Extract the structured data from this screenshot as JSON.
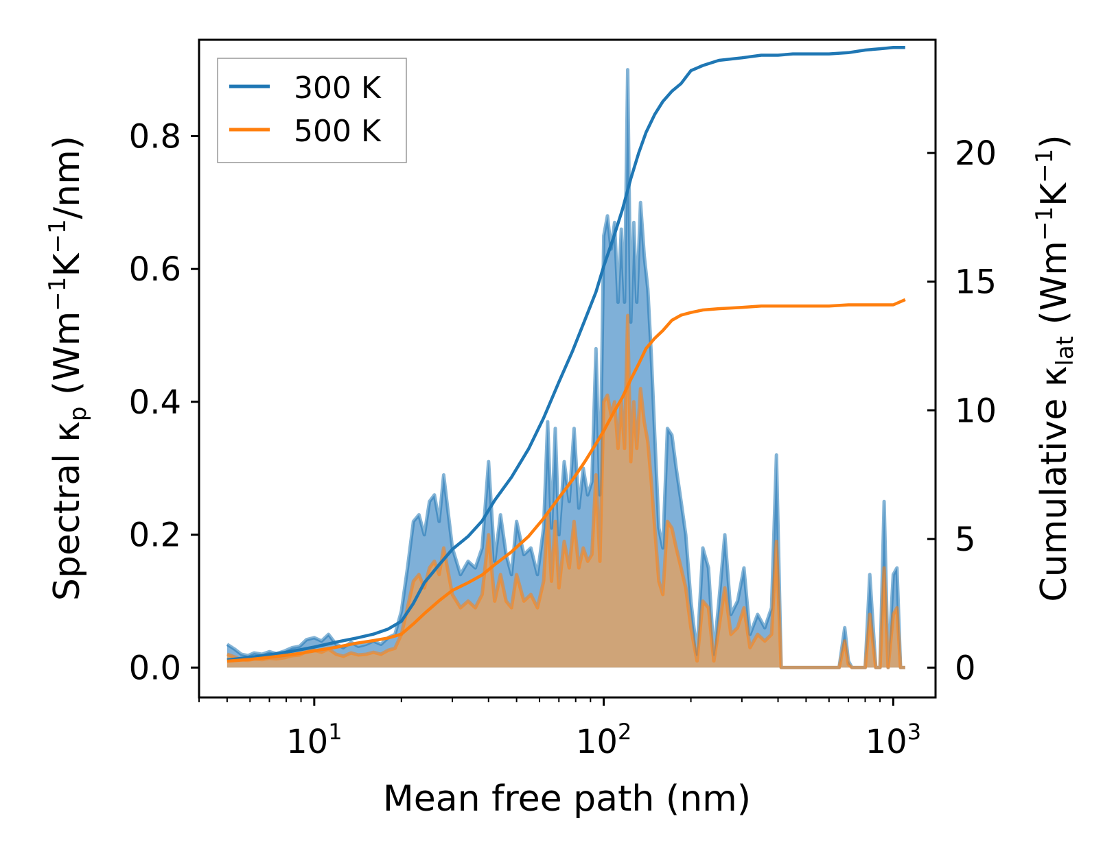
{
  "chart_data": {
    "type": "line+area",
    "title": "",
    "xlabel": "Mean free path (nm)",
    "ylabel_left_main": "Spectral κ",
    "ylabel_left_sub": "p",
    "ylabel_left_units": " (Wm",
    "ylabel_left_exp1": "−1",
    "ylabel_left_mid": "K",
    "ylabel_left_exp2": "−1",
    "ylabel_left_end": "/nm)",
    "ylabel_right_main": "Cumulative κ",
    "ylabel_right_sub": "lat",
    "ylabel_right_units": " (Wm",
    "ylabel_right_exp1": "−1",
    "ylabel_right_mid": "K",
    "ylabel_right_exp2": "−1",
    "ylabel_right_end": ")",
    "x_scale": "log",
    "xlim": [
      4.0,
      1400
    ],
    "ylim_left": [
      -0.045,
      0.945
    ],
    "ylim_right": [
      -1.16,
      24.4
    ],
    "xticks": [
      {
        "value": 10,
        "base": "10",
        "exp": "1"
      },
      {
        "value": 100,
        "base": "10",
        "exp": "2"
      },
      {
        "value": 1000,
        "base": "10",
        "exp": "3"
      }
    ],
    "yticks_left": [
      "0.0",
      "0.2",
      "0.4",
      "0.6",
      "0.8"
    ],
    "yticks_left_values": [
      0.0,
      0.2,
      0.4,
      0.6,
      0.8
    ],
    "yticks_right": [
      "0",
      "5",
      "10",
      "15",
      "20"
    ],
    "yticks_right_values": [
      0,
      5,
      10,
      15,
      20
    ],
    "legend_position": "top-left",
    "series": [
      {
        "name": "300 K",
        "color": "#1f77b4",
        "fill_color": "#1f77b4",
        "spectral_x": [
          5.0,
          5.3,
          5.6,
          5.9,
          6.2,
          6.6,
          7.0,
          7.4,
          7.9,
          8.4,
          8.9,
          9.4,
          10.0,
          10.6,
          11.2,
          11.9,
          12.6,
          13.4,
          14.2,
          15.1,
          16.0,
          17.0,
          18.0,
          19.0,
          20.0,
          21.0,
          22.0,
          23.0,
          24.0,
          25.0,
          26.0,
          27.0,
          28.0,
          30.0,
          32.0,
          34.0,
          36.0,
          38.0,
          40.0,
          42.0,
          44.0,
          46.0,
          48.0,
          50.0,
          53.0,
          56.0,
          59.0,
          62.0,
          64.0,
          66.0,
          68.0,
          70.0,
          73.0,
          76.0,
          79.0,
          82.0,
          85.0,
          88.0,
          91.0,
          94.0,
          97.0,
          100.0,
          103.0,
          106.0,
          109.0,
          112.0,
          115.0,
          118.0,
          121.0,
          124.0,
          127.0,
          130.0,
          134.0,
          138.0,
          142.0,
          146.0,
          150.0,
          155.0,
          160.0,
          166.0,
          172.0,
          178.0,
          185.0,
          192.0,
          200.0,
          210.0,
          220.0,
          230.0,
          240.0,
          250.0,
          262.0,
          275.0,
          290.0,
          305.0,
          320.0,
          340.0,
          360.0,
          380.0,
          395.0,
          410.0,
          450.0,
          500.0,
          550.0,
          600.0,
          650.0,
          680.0,
          700.0,
          720.0,
          760.0,
          800.0,
          830.0,
          870.0,
          900.0,
          930.0,
          960.0,
          1000.0,
          1030.0,
          1060.0,
          1100.0
        ],
        "spectral_y": [
          0.035,
          0.028,
          0.02,
          0.018,
          0.022,
          0.02,
          0.024,
          0.021,
          0.025,
          0.03,
          0.032,
          0.042,
          0.045,
          0.04,
          0.05,
          0.035,
          0.03,
          0.038,
          0.032,
          0.035,
          0.04,
          0.035,
          0.045,
          0.05,
          0.085,
          0.15,
          0.22,
          0.23,
          0.2,
          0.25,
          0.26,
          0.22,
          0.29,
          0.18,
          0.14,
          0.16,
          0.15,
          0.18,
          0.31,
          0.16,
          0.23,
          0.17,
          0.14,
          0.22,
          0.17,
          0.18,
          0.14,
          0.21,
          0.37,
          0.21,
          0.36,
          0.2,
          0.31,
          0.25,
          0.36,
          0.24,
          0.3,
          0.26,
          0.28,
          0.48,
          0.26,
          0.65,
          0.68,
          0.63,
          0.67,
          0.55,
          0.66,
          0.55,
          0.9,
          0.52,
          0.67,
          0.55,
          0.7,
          0.62,
          0.57,
          0.47,
          0.35,
          0.21,
          0.18,
          0.36,
          0.35,
          0.3,
          0.25,
          0.2,
          0.1,
          0.02,
          0.18,
          0.15,
          0.02,
          0.1,
          0.2,
          0.08,
          0.1,
          0.15,
          0.05,
          0.08,
          0.06,
          0.09,
          0.32,
          0.0,
          0.0,
          0.0,
          0.0,
          0.0,
          0.0,
          0.06,
          0.01,
          0.0,
          0.0,
          0.0,
          0.14,
          0.0,
          0.0,
          0.25,
          0.0,
          0.14,
          0.15,
          0.0,
          0.0
        ],
        "cumulative_x": [
          5.0,
          6.0,
          7.0,
          8.0,
          9.0,
          10.0,
          12.0,
          14.0,
          16.0,
          18.0,
          20.0,
          22.0,
          24.0,
          27.0,
          30.0,
          34.0,
          38.0,
          42.0,
          48.0,
          55.0,
          62.0,
          70.0,
          78.0,
          86.0,
          94.0,
          100.0,
          108.0,
          116.0,
          124.0,
          132.0,
          140.0,
          150.0,
          160.0,
          172.0,
          185.0,
          200.0,
          220.0,
          250.0,
          300.0,
          350.0,
          400.0,
          450.0,
          500.0,
          600.0,
          700.0,
          800.0,
          900.0,
          1000.0,
          1100.0
        ],
        "cumulative_y": [
          0.3,
          0.4,
          0.5,
          0.6,
          0.7,
          0.8,
          1.0,
          1.15,
          1.3,
          1.5,
          1.8,
          2.5,
          3.3,
          4.0,
          4.6,
          5.1,
          5.7,
          6.5,
          7.4,
          8.5,
          9.7,
          11.1,
          12.3,
          13.5,
          14.6,
          15.6,
          16.7,
          17.8,
          19.0,
          20.0,
          20.8,
          21.5,
          22.0,
          22.4,
          22.7,
          23.2,
          23.4,
          23.6,
          23.7,
          23.8,
          23.8,
          23.85,
          23.85,
          23.85,
          23.9,
          24.0,
          24.05,
          24.1,
          24.1
        ]
      },
      {
        "name": "500 K",
        "color": "#ff7f0e",
        "fill_color": "#d4a373",
        "spectral_x": [
          5.0,
          5.3,
          5.6,
          5.9,
          6.2,
          6.6,
          7.0,
          7.4,
          7.9,
          8.4,
          8.9,
          9.4,
          10.0,
          10.6,
          11.2,
          11.9,
          12.6,
          13.4,
          14.2,
          15.1,
          16.0,
          17.0,
          18.0,
          19.0,
          20.0,
          21.0,
          22.0,
          23.0,
          24.0,
          25.0,
          26.0,
          27.0,
          28.0,
          30.0,
          32.0,
          34.0,
          36.0,
          38.0,
          40.0,
          42.0,
          44.0,
          46.0,
          48.0,
          50.0,
          53.0,
          56.0,
          59.0,
          62.0,
          64.0,
          66.0,
          68.0,
          70.0,
          73.0,
          76.0,
          79.0,
          82.0,
          85.0,
          88.0,
          91.0,
          94.0,
          97.0,
          100.0,
          103.0,
          106.0,
          109.0,
          112.0,
          115.0,
          118.0,
          121.0,
          124.0,
          127.0,
          130.0,
          134.0,
          138.0,
          142.0,
          146.0,
          150.0,
          155.0,
          160.0,
          166.0,
          172.0,
          178.0,
          185.0,
          192.0,
          200.0,
          210.0,
          220.0,
          230.0,
          240.0,
          250.0,
          262.0,
          275.0,
          290.0,
          305.0,
          320.0,
          340.0,
          360.0,
          380.0,
          395.0,
          410.0,
          450.0,
          500.0,
          550.0,
          600.0,
          650.0,
          680.0,
          700.0,
          720.0,
          760.0,
          800.0,
          830.0,
          870.0,
          900.0,
          930.0,
          960.0,
          1000.0,
          1030.0,
          1060.0,
          1100.0
        ],
        "spectral_y": [
          0.02,
          0.016,
          0.012,
          0.011,
          0.013,
          0.012,
          0.014,
          0.013,
          0.015,
          0.018,
          0.019,
          0.024,
          0.026,
          0.023,
          0.028,
          0.02,
          0.017,
          0.022,
          0.019,
          0.02,
          0.023,
          0.02,
          0.026,
          0.029,
          0.05,
          0.09,
          0.13,
          0.14,
          0.12,
          0.15,
          0.16,
          0.14,
          0.18,
          0.11,
          0.09,
          0.1,
          0.09,
          0.11,
          0.2,
          0.1,
          0.14,
          0.1,
          0.09,
          0.14,
          0.1,
          0.11,
          0.09,
          0.13,
          0.23,
          0.13,
          0.22,
          0.12,
          0.19,
          0.15,
          0.22,
          0.15,
          0.18,
          0.16,
          0.17,
          0.29,
          0.16,
          0.4,
          0.41,
          0.38,
          0.4,
          0.33,
          0.4,
          0.33,
          0.53,
          0.31,
          0.4,
          0.33,
          0.42,
          0.37,
          0.34,
          0.28,
          0.21,
          0.13,
          0.11,
          0.22,
          0.21,
          0.18,
          0.15,
          0.12,
          0.06,
          0.01,
          0.1,
          0.09,
          0.01,
          0.06,
          0.12,
          0.05,
          0.06,
          0.09,
          0.03,
          0.05,
          0.04,
          0.05,
          0.19,
          0.0,
          0.0,
          0.0,
          0.0,
          0.0,
          0.0,
          0.04,
          0.005,
          0.0,
          0.0,
          0.0,
          0.08,
          0.0,
          0.0,
          0.15,
          0.0,
          0.08,
          0.09,
          0.0,
          0.0
        ],
        "cumulative_x": [
          5.0,
          6.0,
          7.0,
          8.0,
          9.0,
          10.0,
          12.0,
          14.0,
          16.0,
          18.0,
          20.0,
          22.0,
          24.0,
          27.0,
          30.0,
          34.0,
          38.0,
          42.0,
          48.0,
          55.0,
          62.0,
          70.0,
          78.0,
          86.0,
          94.0,
          100.0,
          108.0,
          116.0,
          124.0,
          132.0,
          140.0,
          150.0,
          160.0,
          172.0,
          185.0,
          200.0,
          220.0,
          250.0,
          300.0,
          350.0,
          400.0,
          450.0,
          500.0,
          600.0,
          700.0,
          800.0,
          900.0,
          1000.0,
          1100.0
        ],
        "cumulative_y": [
          0.25,
          0.32,
          0.4,
          0.48,
          0.56,
          0.65,
          0.8,
          0.95,
          1.05,
          1.15,
          1.3,
          1.7,
          2.1,
          2.6,
          3.0,
          3.3,
          3.6,
          4.0,
          4.5,
          5.1,
          5.8,
          6.6,
          7.3,
          8.0,
          8.7,
          9.2,
          9.9,
          10.5,
          11.2,
          11.8,
          12.4,
          12.8,
          13.1,
          13.5,
          13.7,
          13.8,
          13.9,
          13.95,
          14.0,
          14.05,
          14.05,
          14.05,
          14.05,
          14.05,
          14.1,
          14.1,
          14.1,
          14.1,
          14.3
        ]
      }
    ]
  }
}
